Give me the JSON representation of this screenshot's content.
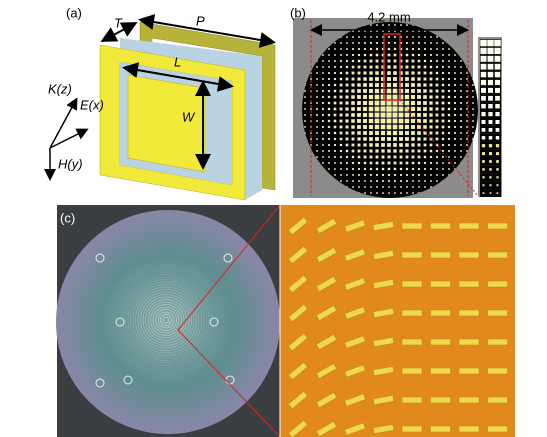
{
  "panel_a": {
    "label": "(a)",
    "dims": {
      "T": "T",
      "P": "P",
      "L": "L",
      "W": "W"
    },
    "axes": {
      "k": "K(z)",
      "e": "E(x)",
      "h": "H(y)"
    }
  },
  "panel_b": {
    "label": "(b)",
    "scale": "4.2 mm"
  },
  "panel_c": {
    "label": "(c)"
  }
}
